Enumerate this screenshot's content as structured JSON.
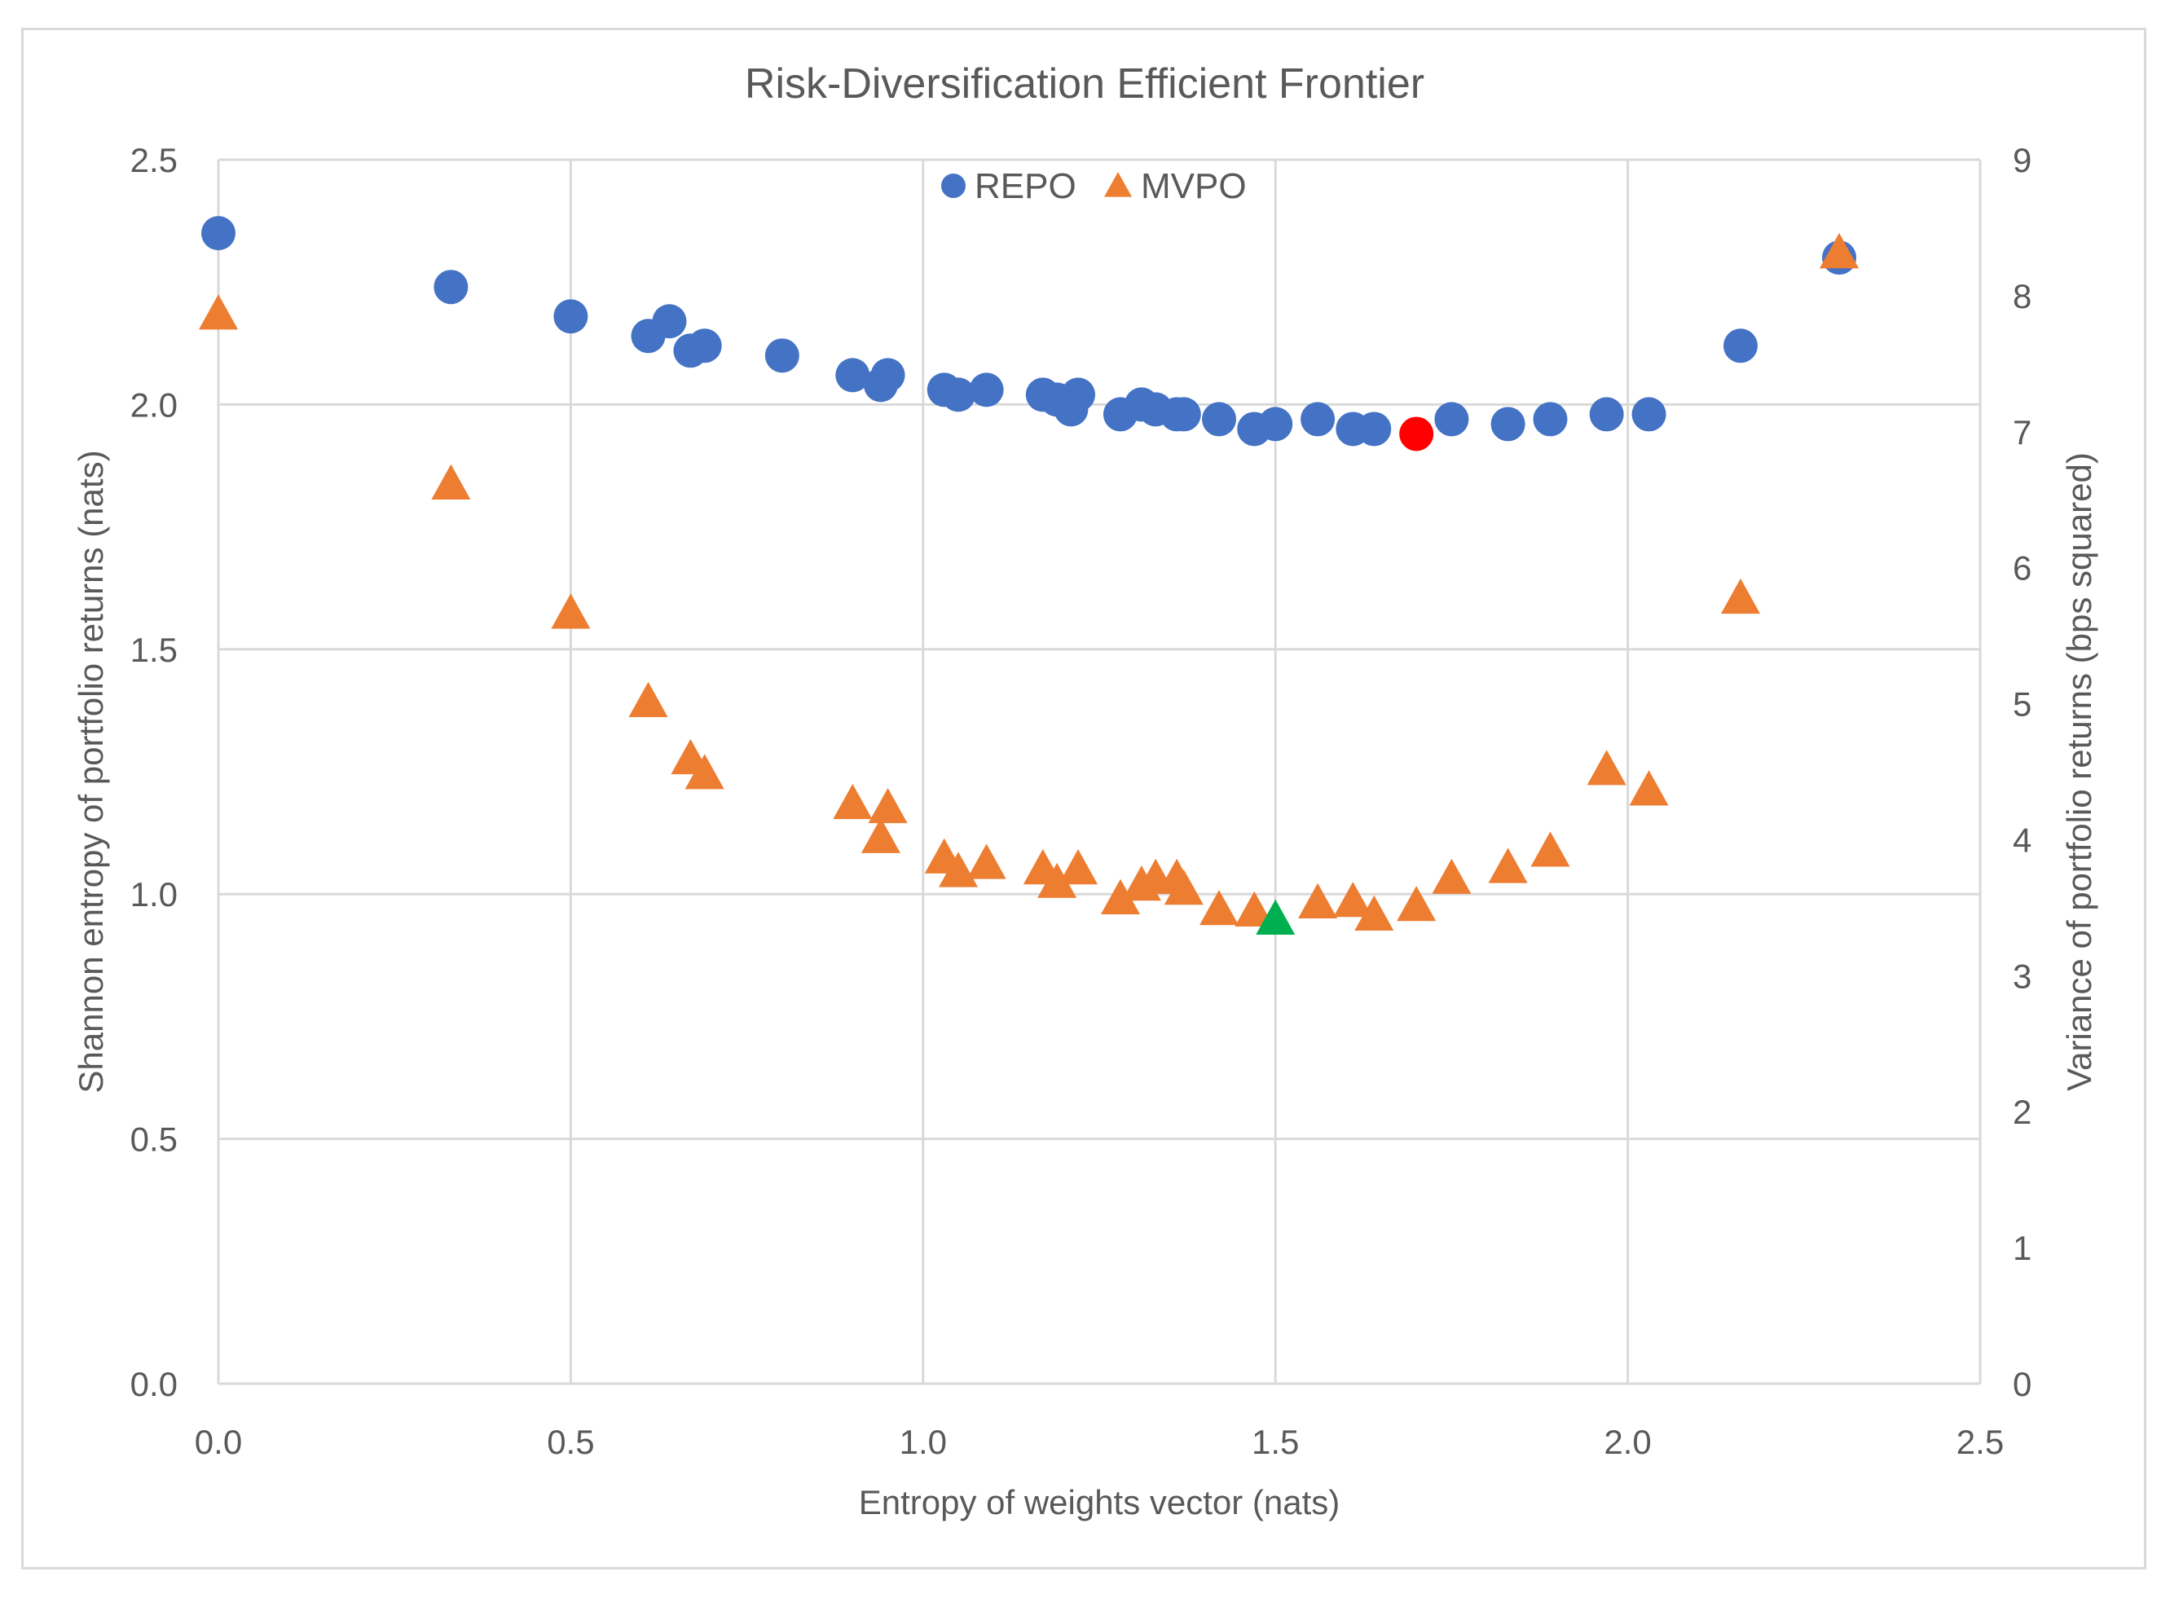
{
  "chart_data": {
    "type": "scatter",
    "title": "Risk-Diversification Efficient Frontier",
    "xlabel": "Entropy of weights vector (nats)",
    "ylabel_left": "Shannon entropy of portfolio returns (nats)",
    "ylabel_right": "Variance of portfolio returns (bps squared)",
    "xlim": [
      0,
      2.5
    ],
    "ylim_left": [
      0,
      2.5
    ],
    "ylim_right": [
      0,
      9
    ],
    "x_ticks": [
      "0.0",
      "0.5",
      "1.0",
      "1.5",
      "2.0",
      "2.5"
    ],
    "y_left_ticks": [
      "0.0",
      "0.5",
      "1.0",
      "1.5",
      "2.0",
      "2.5"
    ],
    "y_right_ticks": [
      "0",
      "1",
      "2",
      "3",
      "4",
      "5",
      "6",
      "7",
      "8",
      "9"
    ],
    "grid": "vertical and horizontal major gridlines",
    "legend_position": "top-center",
    "series": [
      {
        "name": "REPO",
        "axis": "left",
        "marker": "circle",
        "color": "#4472C4",
        "x": [
          0.0,
          0.33,
          0.5,
          0.61,
          0.64,
          0.67,
          0.69,
          0.8,
          0.9,
          0.94,
          0.95,
          1.03,
          1.05,
          1.09,
          1.17,
          1.19,
          1.21,
          1.22,
          1.28,
          1.31,
          1.33,
          1.36,
          1.37,
          1.42,
          1.47,
          1.5,
          1.56,
          1.61,
          1.64,
          1.75,
          1.83,
          1.89,
          1.97,
          2.03,
          2.16,
          2.3
        ],
        "y": [
          2.35,
          2.24,
          2.18,
          2.14,
          2.17,
          2.11,
          2.12,
          2.1,
          2.06,
          2.04,
          2.06,
          2.03,
          2.02,
          2.03,
          2.02,
          2.01,
          1.99,
          2.02,
          1.98,
          2.0,
          1.99,
          1.98,
          1.98,
          1.97,
          1.95,
          1.96,
          1.97,
          1.95,
          1.95,
          1.97,
          1.96,
          1.97,
          1.98,
          1.98,
          2.12,
          2.3
        ]
      },
      {
        "name": "MVPO",
        "axis": "right",
        "marker": "triangle",
        "color": "#ED7D31",
        "x": [
          0.0,
          0.33,
          0.5,
          0.61,
          0.67,
          0.69,
          0.9,
          0.94,
          0.95,
          1.03,
          1.05,
          1.09,
          1.17,
          1.19,
          1.22,
          1.28,
          1.31,
          1.33,
          1.36,
          1.37,
          1.42,
          1.47,
          1.56,
          1.61,
          1.64,
          1.7,
          1.75,
          1.83,
          1.89,
          1.97,
          2.03,
          2.16,
          2.3
        ],
        "y": [
          7.85,
          6.6,
          5.65,
          5.0,
          4.58,
          4.47,
          4.25,
          4.0,
          4.22,
          3.85,
          3.75,
          3.81,
          3.77,
          3.67,
          3.77,
          3.55,
          3.65,
          3.7,
          3.7,
          3.62,
          3.47,
          3.46,
          3.52,
          3.53,
          3.43,
          3.5,
          3.7,
          3.78,
          3.9,
          4.5,
          4.35,
          5.76,
          8.3
        ]
      }
    ],
    "highlights": [
      {
        "name": "REPO selected point",
        "axis": "left",
        "marker": "circle",
        "color": "#FF0000",
        "x": 1.7,
        "y": 1.94
      },
      {
        "name": "MVPO selected point",
        "axis": "right",
        "marker": "triangle",
        "color": "#00B050",
        "x": 1.5,
        "y": 3.4
      }
    ]
  }
}
